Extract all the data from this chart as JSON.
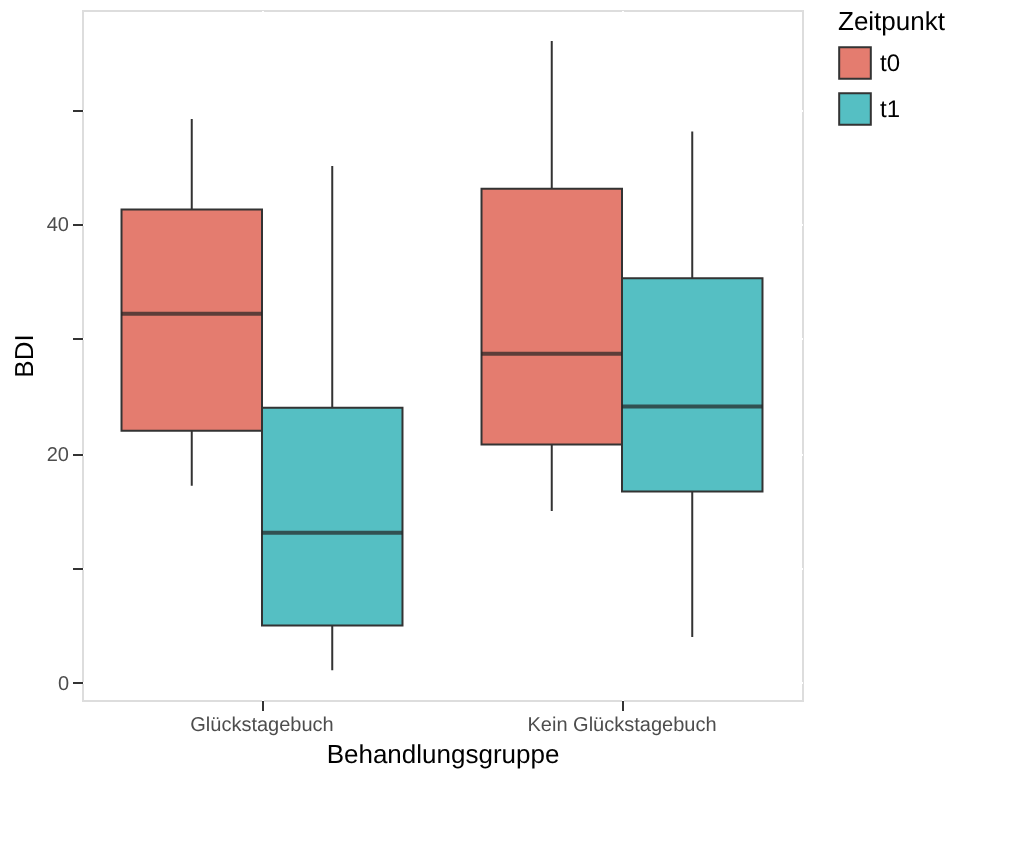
{
  "chart_data": {
    "type": "box",
    "xlabel": "Behandlungsgruppe",
    "ylabel": "BDI",
    "legend_title": "Zeitpunkt",
    "legend": "right",
    "grid": true,
    "categories": [
      "Glückstagebuch",
      "Kein Glückstagebuch"
    ],
    "ylim": [
      -1.5,
      58.7
    ],
    "yticks": [
      0,
      {
        "value": 10,
        "label": null
      },
      20,
      {
        "value": 30,
        "label": null
      },
      40,
      {
        "value": 50,
        "label": null
      }
    ],
    "series": [
      {
        "name": "t0",
        "color": "#e47c6f",
        "boxes": [
          {
            "low": 17.2,
            "q1": 22.0,
            "median": 32.2,
            "q3": 41.3,
            "high": 49.2
          },
          {
            "low": 15.0,
            "q1": 20.8,
            "median": 28.7,
            "q3": 43.1,
            "high": 56.0
          }
        ]
      },
      {
        "name": "t1",
        "color": "#55bfc3",
        "boxes": [
          {
            "low": 1.1,
            "q1": 5.0,
            "median": 13.1,
            "q3": 24.0,
            "high": 45.1
          },
          {
            "low": 4.0,
            "q1": 16.7,
            "median": 24.1,
            "q3": 35.3,
            "high": 48.1
          }
        ]
      }
    ]
  }
}
